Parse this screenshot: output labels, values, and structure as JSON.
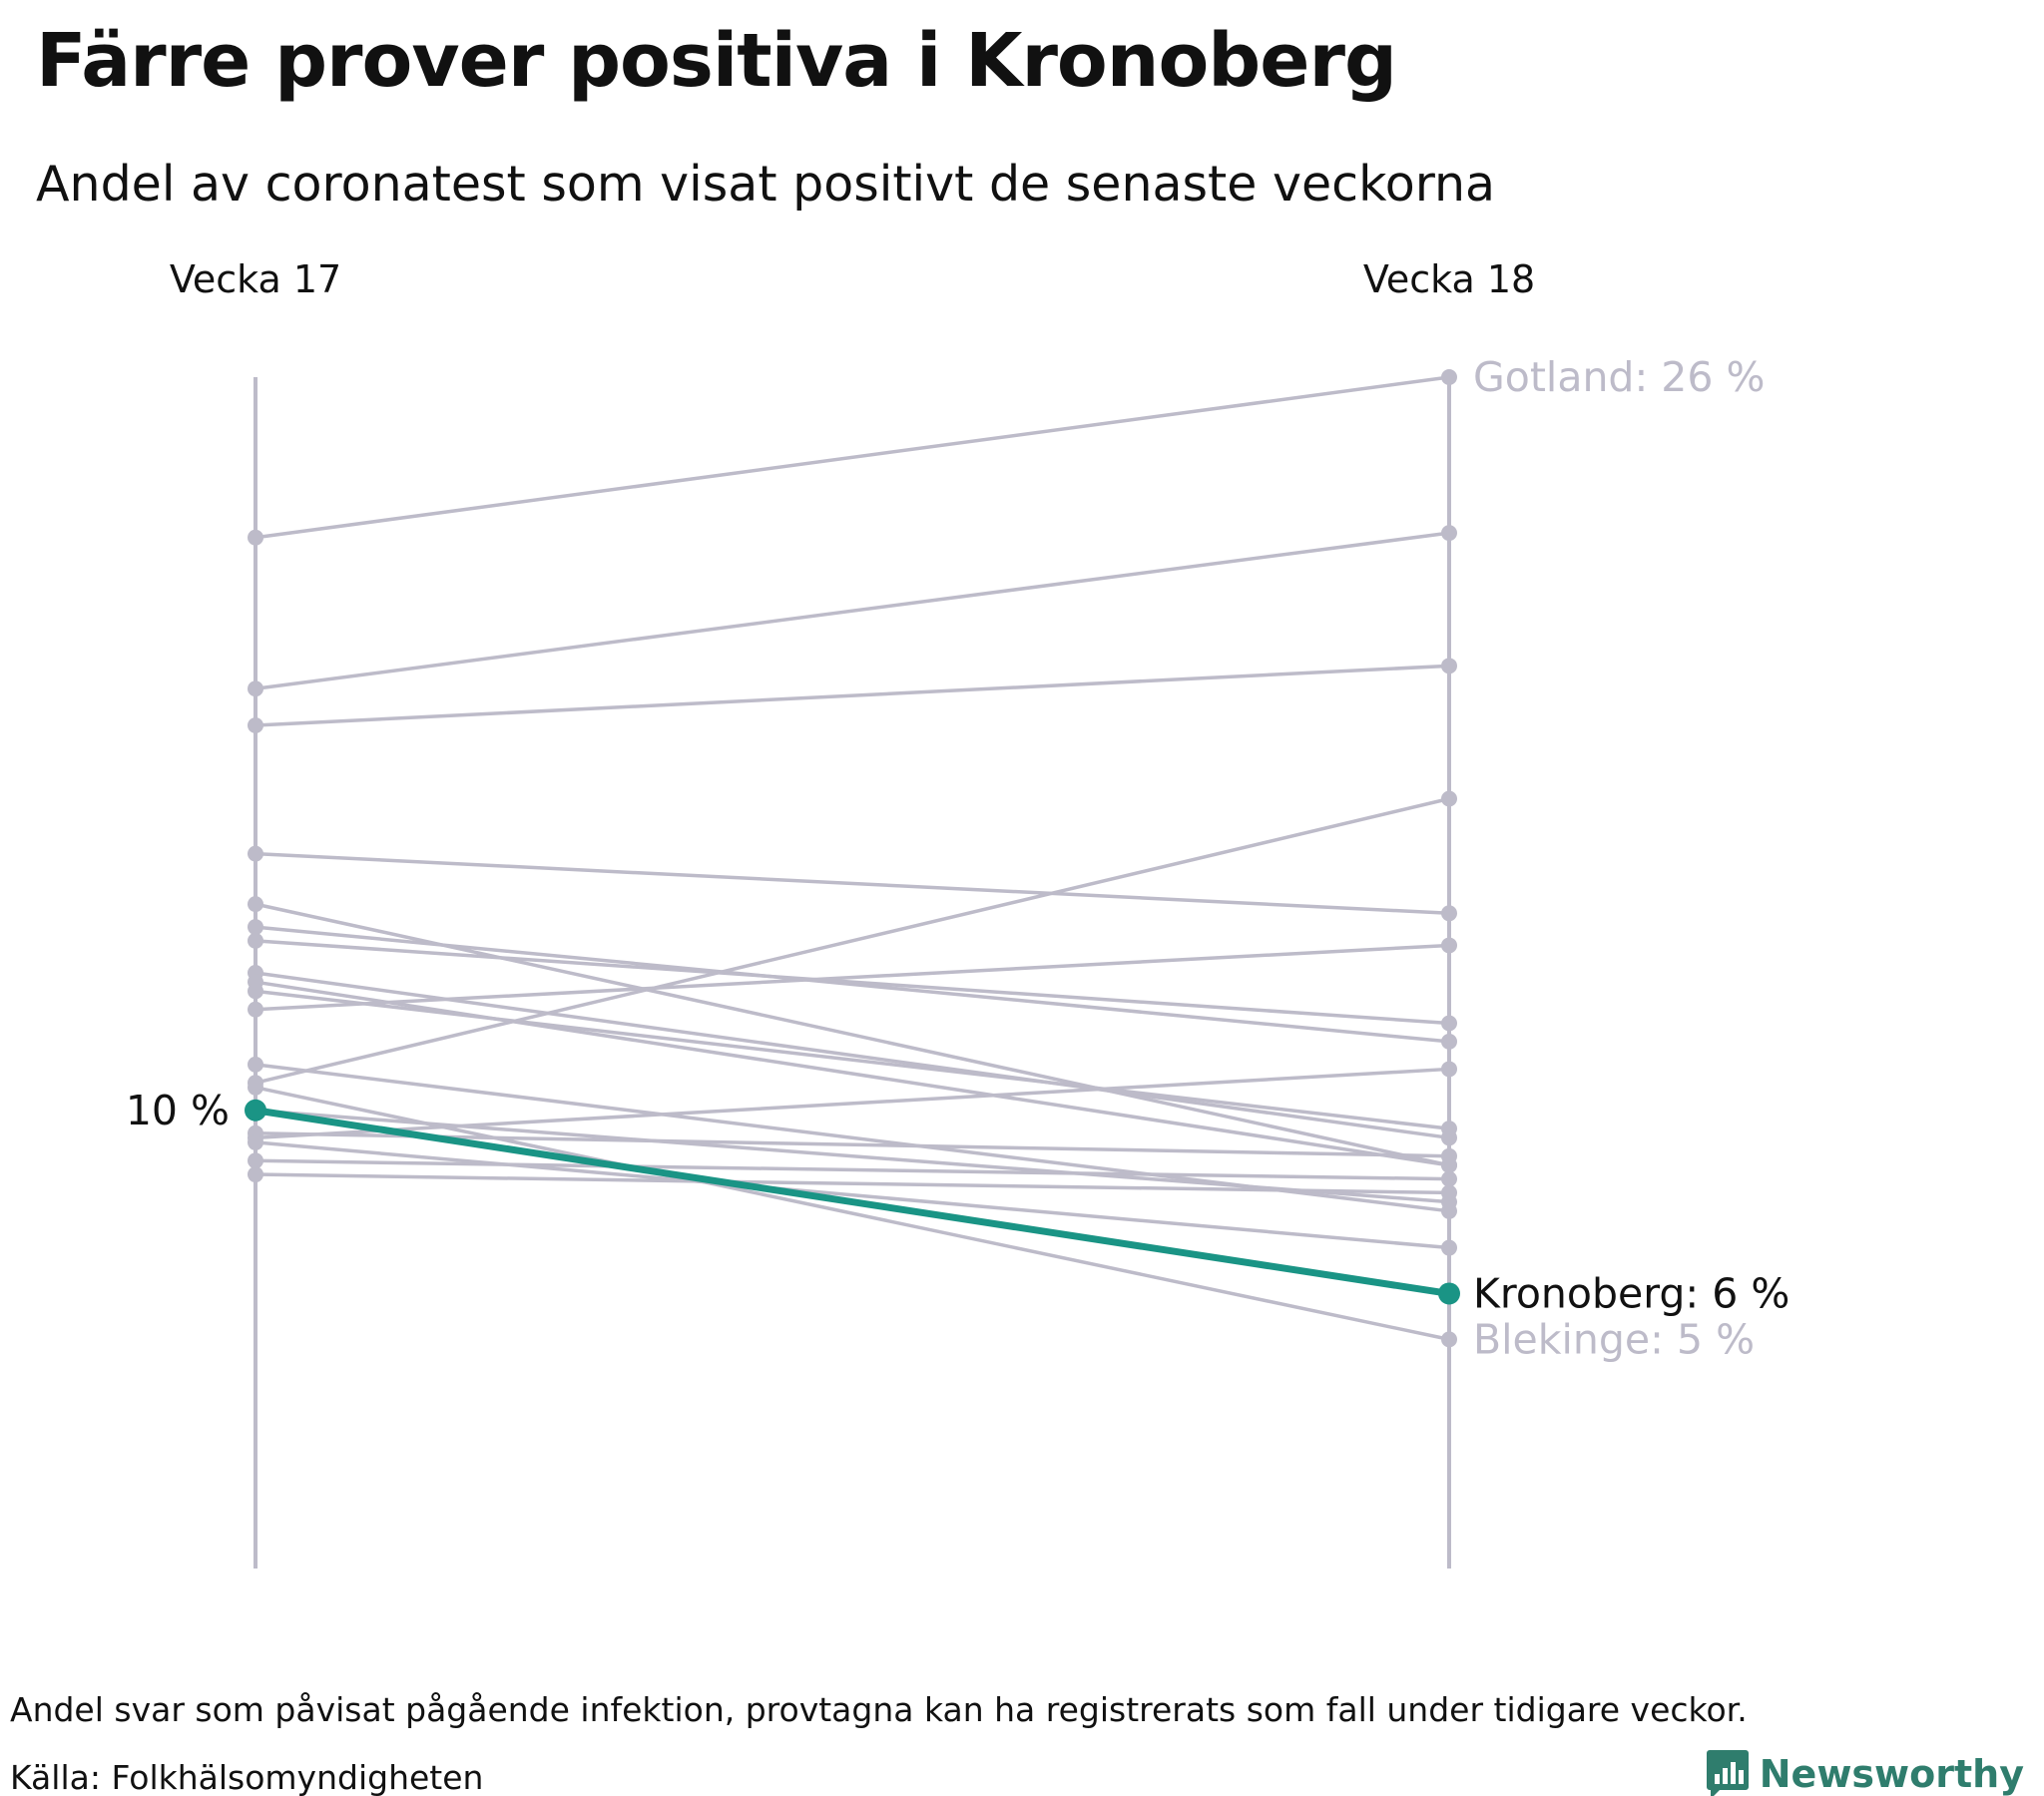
{
  "header": {
    "title": "Färre prover positiva i Kronoberg",
    "subtitle": "Andel av coronatest som visat positivt de senaste veckorna"
  },
  "footer": {
    "note": "Andel svar som påvisat pågående infektion, provtagna kan ha registrerats som fall under tidigare veckor.",
    "source": "Källa: Folkhälsomyndigheten",
    "brand": "Newsworthy",
    "brand_icon": "bar-chart-speech-bubble-icon"
  },
  "colors": {
    "highlight": "#1a9485",
    "other": "#bdbbc9",
    "axis": "#bdbbc9",
    "text": "#111111",
    "brand": "#2f7d6d"
  },
  "chart_data": {
    "type": "line",
    "subtype": "slope",
    "x": [
      "Vecka 17",
      "Vecka 18"
    ],
    "ylim": [
      0,
      26
    ],
    "grid": false,
    "legend": "none",
    "value_suffix": " %",
    "labels": {
      "highlight_start": "10 %",
      "gotland": "Gotland: 26 %",
      "kronoberg": "Kronoberg: 6 %",
      "blekinge": "Blekinge: 5 %"
    },
    "series": [
      {
        "name": "Gotland",
        "values": [
          22.5,
          26.0
        ],
        "highlight": false
      },
      {
        "name": "Kronoberg",
        "values": [
          10.0,
          6.0
        ],
        "highlight": true
      },
      {
        "name": "Blekinge",
        "values": [
          10.5,
          5.0
        ],
        "highlight": false
      },
      {
        "values": [
          19.2,
          22.6
        ],
        "highlight": false
      },
      {
        "values": [
          18.4,
          19.7
        ],
        "highlight": false
      },
      {
        "values": [
          15.6,
          14.3
        ],
        "highlight": false
      },
      {
        "values": [
          14.5,
          8.8
        ],
        "highlight": false
      },
      {
        "values": [
          14.0,
          11.5
        ],
        "highlight": false
      },
      {
        "values": [
          13.7,
          11.9
        ],
        "highlight": false
      },
      {
        "values": [
          13.0,
          9.4
        ],
        "highlight": false
      },
      {
        "values": [
          12.8,
          8.8
        ],
        "highlight": false
      },
      {
        "values": [
          12.6,
          9.6
        ],
        "highlight": false
      },
      {
        "values": [
          11.0,
          7.8
        ],
        "highlight": false
      },
      {
        "values": [
          12.2,
          13.6
        ],
        "highlight": false
      },
      {
        "values": [
          10.6,
          16.8
        ],
        "highlight": false
      },
      {
        "values": [
          10.0,
          8.0
        ],
        "highlight": false
      },
      {
        "values": [
          9.4,
          10.9
        ],
        "highlight": false
      },
      {
        "values": [
          9.5,
          9.0
        ],
        "highlight": false
      },
      {
        "values": [
          8.9,
          8.5
        ],
        "highlight": false
      },
      {
        "values": [
          8.6,
          8.2
        ],
        "highlight": false
      },
      {
        "values": [
          9.3,
          7.0
        ],
        "highlight": false
      }
    ]
  }
}
